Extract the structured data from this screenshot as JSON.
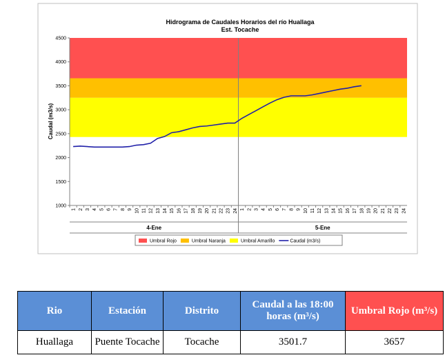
{
  "chart_data": {
    "type": "line",
    "title": "Hidrograma de Caudales Horarios del río Huallaga",
    "subtitle": "Est. Tocache",
    "y_label": "Caudal  (m3/s)",
    "categories": [
      "1",
      "2",
      "3",
      "4",
      "5",
      "6",
      "7",
      "8",
      "9",
      "10",
      "11",
      "12",
      "13",
      "14",
      "15",
      "16",
      "17",
      "18",
      "19",
      "20",
      "21",
      "22",
      "23",
      "24",
      "1",
      "2",
      "3",
      "4",
      "5",
      "6",
      "7",
      "8",
      "9",
      "10",
      "11",
      "12",
      "13",
      "14",
      "15",
      "16",
      "17",
      "18",
      "19",
      "20",
      "21",
      "22",
      "23",
      "24"
    ],
    "groups": [
      "4-Ene",
      "5-Ene"
    ],
    "thresholds": [
      {
        "name": "Umbral Rojo",
        "color": "#ff5050",
        "value": 3657
      },
      {
        "name": "Umbral Naranja",
        "color": "#ffc000",
        "value": 3250
      },
      {
        "name": "Umbral Amarillo",
        "color": "#ffff00",
        "value": 2430
      }
    ],
    "series": [
      {
        "name": "Caudal (m3/s)",
        "color": "#1f1fa8",
        "values": [
          2230,
          2240,
          2230,
          2220,
          2220,
          2220,
          2220,
          2220,
          2230,
          2260,
          2270,
          2300,
          2400,
          2440,
          2520,
          2540,
          2580,
          2620,
          2650,
          2660,
          2680,
          2700,
          2720,
          2720,
          2820,
          2900,
          2980,
          3060,
          3140,
          3210,
          3260,
          3290,
          3290,
          3290,
          3310,
          3340,
          3370,
          3400,
          3430,
          3450,
          3480,
          3501.7,
          null,
          null,
          null,
          null,
          null,
          null
        ]
      }
    ],
    "ylim": [
      1000,
      4500
    ],
    "yticks": [
      1000,
      1500,
      2000,
      2500,
      3000,
      3500,
      4000,
      4500
    ]
  },
  "table": {
    "header": [
      "Rio",
      "Estación",
      "Distrito",
      "Caudal a las 18:00 horas (m³/s)",
      "Umbral Rojo (m³/s)"
    ],
    "rows": [
      [
        "Huallaga",
        "Puente Tocache",
        "Tocache",
        "3501.7",
        "3657"
      ]
    ]
  }
}
